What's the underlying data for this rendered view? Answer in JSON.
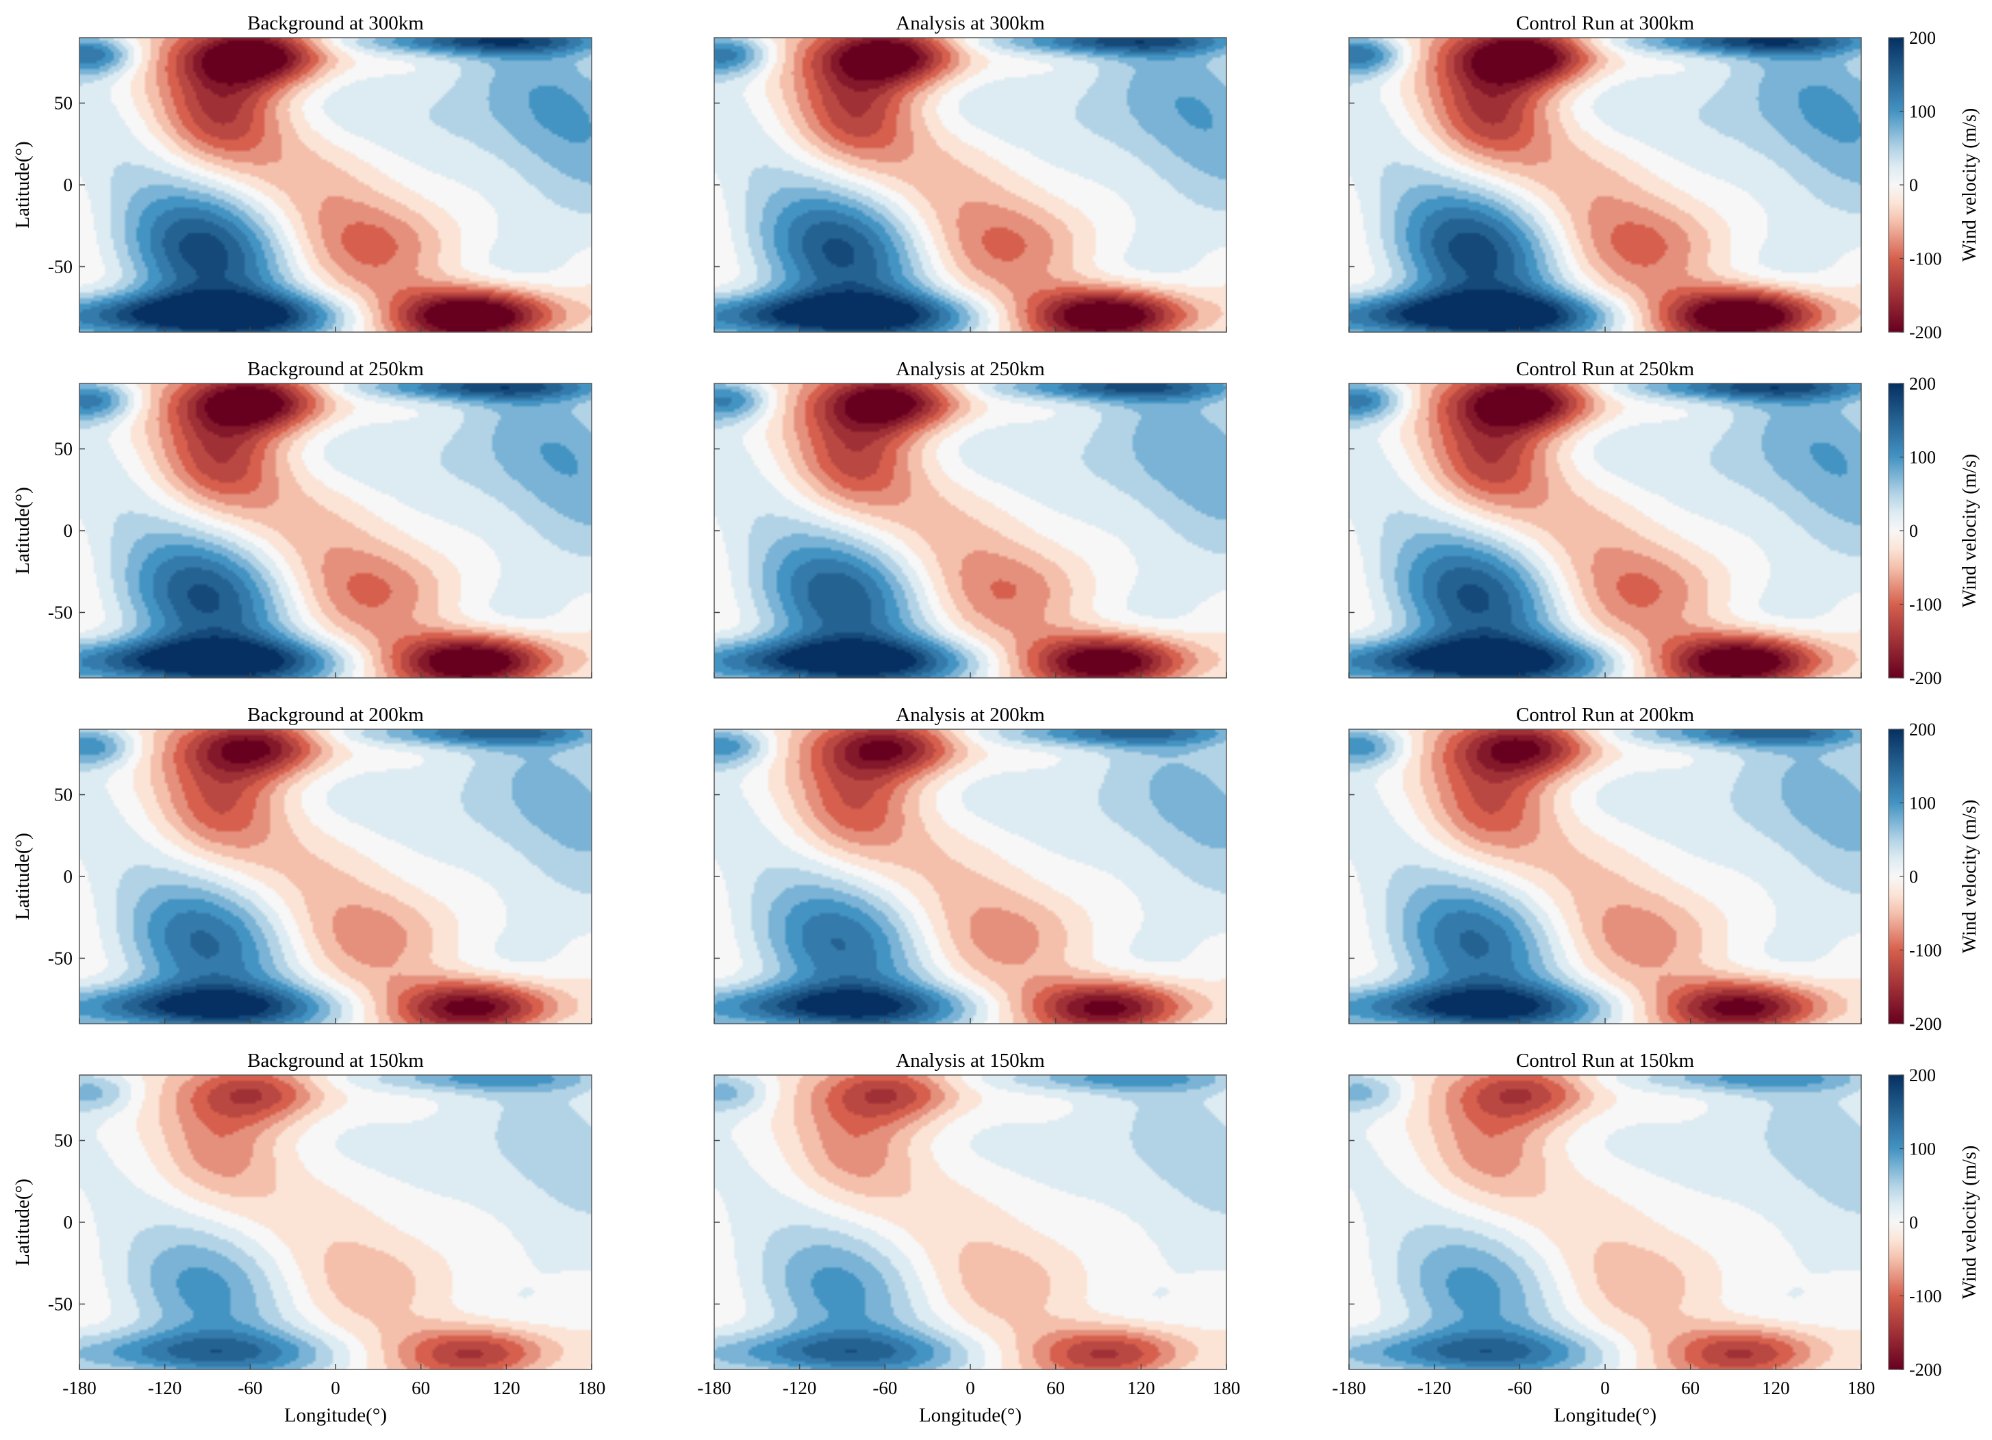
{
  "figure": {
    "type": "contour-grid",
    "rows": 4,
    "columns": 3
  },
  "labels": {
    "ylabel": "Latitude(°)",
    "xlabel": "Longitude(°)",
    "colorbar_label": "Wind velocity (m/s)"
  },
  "axes": {
    "xticks": [
      "-180",
      "-120",
      "-60",
      "0",
      "60",
      "120",
      "180"
    ],
    "yticks": [
      "50",
      "0",
      "-50"
    ],
    "xlim": [
      -180,
      180
    ],
    "ylim": [
      -90,
      90
    ],
    "colorbar_ticks": [
      "200",
      "100",
      "0",
      "-100",
      "-200"
    ],
    "clim": [
      -200,
      200
    ]
  },
  "colors": {
    "neg_max": "#67001f",
    "neg_mid": "#d6604d",
    "neg_low": "#fddbc7",
    "zero": "#f7f7f7",
    "pos_low": "#d1e5f0",
    "pos_mid": "#4393c3",
    "pos_max": "#053061"
  },
  "chart_data": [
    {
      "type": "heatmap",
      "title": "Background at 300km",
      "row": 0,
      "col": 0,
      "altitude_km": 300,
      "strength": 1.0
    },
    {
      "type": "heatmap",
      "title": "Analysis at 300km",
      "row": 0,
      "col": 1,
      "altitude_km": 300,
      "strength": 0.95
    },
    {
      "type": "heatmap",
      "title": "Control Run at 300km",
      "row": 0,
      "col": 2,
      "altitude_km": 300,
      "strength": 1.0
    },
    {
      "type": "heatmap",
      "title": "Background at 250km",
      "row": 1,
      "col": 0,
      "altitude_km": 250,
      "strength": 0.95
    },
    {
      "type": "heatmap",
      "title": "Analysis at 250km",
      "row": 1,
      "col": 1,
      "altitude_km": 250,
      "strength": 0.9
    },
    {
      "type": "heatmap",
      "title": "Control Run at 250km",
      "row": 1,
      "col": 2,
      "altitude_km": 250,
      "strength": 0.95
    },
    {
      "type": "heatmap",
      "title": "Background at 200km",
      "row": 2,
      "col": 0,
      "altitude_km": 200,
      "strength": 0.8
    },
    {
      "type": "heatmap",
      "title": "Analysis at 200km",
      "row": 2,
      "col": 1,
      "altitude_km": 200,
      "strength": 0.78
    },
    {
      "type": "heatmap",
      "title": "Control Run at 200km",
      "row": 2,
      "col": 2,
      "altitude_km": 200,
      "strength": 0.8
    },
    {
      "type": "heatmap",
      "title": "Background at 150km",
      "row": 3,
      "col": 0,
      "altitude_km": 150,
      "strength": 0.55
    },
    {
      "type": "heatmap",
      "title": "Analysis at 150km",
      "row": 3,
      "col": 1,
      "altitude_km": 150,
      "strength": 0.55
    },
    {
      "type": "heatmap",
      "title": "Control Run at 150km",
      "row": 3,
      "col": 2,
      "altitude_km": 150,
      "strength": 0.55
    }
  ]
}
